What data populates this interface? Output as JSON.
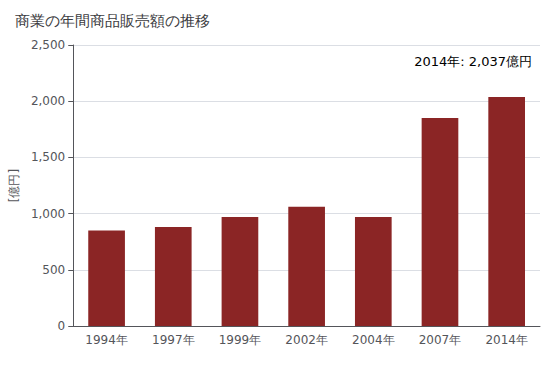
{
  "chart_data": {
    "type": "bar",
    "title": "商業の年間商品販売額の推移",
    "ylabel": "[億円]",
    "annotation": "2014年: 2,037億円",
    "categories": [
      "1994年",
      "1997年",
      "1999年",
      "2002年",
      "2004年",
      "2007年",
      "2014年"
    ],
    "values": [
      850,
      880,
      970,
      1060,
      970,
      1850,
      2037
    ],
    "color": "#8B2525",
    "ylim": [
      0,
      2500
    ],
    "yticks": [
      0,
      500,
      {
        "value": 1000,
        "label": "1,000"
      },
      {
        "value": 1500,
        "label": "1,500"
      },
      {
        "value": 2000,
        "label": "2,000"
      },
      {
        "value": 2500,
        "label": "2,500"
      }
    ],
    "grid": true
  }
}
